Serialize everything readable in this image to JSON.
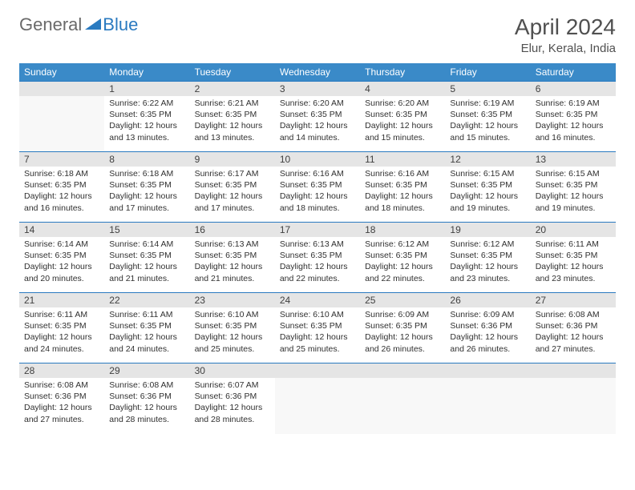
{
  "logo": {
    "part1": "General",
    "part2": "Blue"
  },
  "title": "April 2024",
  "location": "Elur, Kerala, India",
  "colors": {
    "header_bg": "#3a8ac8",
    "header_text": "#ffffff",
    "daynum_bg": "#e5e5e5",
    "border": "#2a7ac0",
    "logo_gray": "#6a6a6a",
    "logo_blue": "#2a7ac0",
    "text": "#303030",
    "title_text": "#505050"
  },
  "day_headers": [
    "Sunday",
    "Monday",
    "Tuesday",
    "Wednesday",
    "Thursday",
    "Friday",
    "Saturday"
  ],
  "weeks": [
    [
      null,
      {
        "n": "1",
        "sr": "Sunrise: 6:22 AM",
        "ss": "Sunset: 6:35 PM",
        "dl": "Daylight: 12 hours and 13 minutes."
      },
      {
        "n": "2",
        "sr": "Sunrise: 6:21 AM",
        "ss": "Sunset: 6:35 PM",
        "dl": "Daylight: 12 hours and 13 minutes."
      },
      {
        "n": "3",
        "sr": "Sunrise: 6:20 AM",
        "ss": "Sunset: 6:35 PM",
        "dl": "Daylight: 12 hours and 14 minutes."
      },
      {
        "n": "4",
        "sr": "Sunrise: 6:20 AM",
        "ss": "Sunset: 6:35 PM",
        "dl": "Daylight: 12 hours and 15 minutes."
      },
      {
        "n": "5",
        "sr": "Sunrise: 6:19 AM",
        "ss": "Sunset: 6:35 PM",
        "dl": "Daylight: 12 hours and 15 minutes."
      },
      {
        "n": "6",
        "sr": "Sunrise: 6:19 AM",
        "ss": "Sunset: 6:35 PM",
        "dl": "Daylight: 12 hours and 16 minutes."
      }
    ],
    [
      {
        "n": "7",
        "sr": "Sunrise: 6:18 AM",
        "ss": "Sunset: 6:35 PM",
        "dl": "Daylight: 12 hours and 16 minutes."
      },
      {
        "n": "8",
        "sr": "Sunrise: 6:18 AM",
        "ss": "Sunset: 6:35 PM",
        "dl": "Daylight: 12 hours and 17 minutes."
      },
      {
        "n": "9",
        "sr": "Sunrise: 6:17 AM",
        "ss": "Sunset: 6:35 PM",
        "dl": "Daylight: 12 hours and 17 minutes."
      },
      {
        "n": "10",
        "sr": "Sunrise: 6:16 AM",
        "ss": "Sunset: 6:35 PM",
        "dl": "Daylight: 12 hours and 18 minutes."
      },
      {
        "n": "11",
        "sr": "Sunrise: 6:16 AM",
        "ss": "Sunset: 6:35 PM",
        "dl": "Daylight: 12 hours and 18 minutes."
      },
      {
        "n": "12",
        "sr": "Sunrise: 6:15 AM",
        "ss": "Sunset: 6:35 PM",
        "dl": "Daylight: 12 hours and 19 minutes."
      },
      {
        "n": "13",
        "sr": "Sunrise: 6:15 AM",
        "ss": "Sunset: 6:35 PM",
        "dl": "Daylight: 12 hours and 19 minutes."
      }
    ],
    [
      {
        "n": "14",
        "sr": "Sunrise: 6:14 AM",
        "ss": "Sunset: 6:35 PM",
        "dl": "Daylight: 12 hours and 20 minutes."
      },
      {
        "n": "15",
        "sr": "Sunrise: 6:14 AM",
        "ss": "Sunset: 6:35 PM",
        "dl": "Daylight: 12 hours and 21 minutes."
      },
      {
        "n": "16",
        "sr": "Sunrise: 6:13 AM",
        "ss": "Sunset: 6:35 PM",
        "dl": "Daylight: 12 hours and 21 minutes."
      },
      {
        "n": "17",
        "sr": "Sunrise: 6:13 AM",
        "ss": "Sunset: 6:35 PM",
        "dl": "Daylight: 12 hours and 22 minutes."
      },
      {
        "n": "18",
        "sr": "Sunrise: 6:12 AM",
        "ss": "Sunset: 6:35 PM",
        "dl": "Daylight: 12 hours and 22 minutes."
      },
      {
        "n": "19",
        "sr": "Sunrise: 6:12 AM",
        "ss": "Sunset: 6:35 PM",
        "dl": "Daylight: 12 hours and 23 minutes."
      },
      {
        "n": "20",
        "sr": "Sunrise: 6:11 AM",
        "ss": "Sunset: 6:35 PM",
        "dl": "Daylight: 12 hours and 23 minutes."
      }
    ],
    [
      {
        "n": "21",
        "sr": "Sunrise: 6:11 AM",
        "ss": "Sunset: 6:35 PM",
        "dl": "Daylight: 12 hours and 24 minutes."
      },
      {
        "n": "22",
        "sr": "Sunrise: 6:11 AM",
        "ss": "Sunset: 6:35 PM",
        "dl": "Daylight: 12 hours and 24 minutes."
      },
      {
        "n": "23",
        "sr": "Sunrise: 6:10 AM",
        "ss": "Sunset: 6:35 PM",
        "dl": "Daylight: 12 hours and 25 minutes."
      },
      {
        "n": "24",
        "sr": "Sunrise: 6:10 AM",
        "ss": "Sunset: 6:35 PM",
        "dl": "Daylight: 12 hours and 25 minutes."
      },
      {
        "n": "25",
        "sr": "Sunrise: 6:09 AM",
        "ss": "Sunset: 6:35 PM",
        "dl": "Daylight: 12 hours and 26 minutes."
      },
      {
        "n": "26",
        "sr": "Sunrise: 6:09 AM",
        "ss": "Sunset: 6:36 PM",
        "dl": "Daylight: 12 hours and 26 minutes."
      },
      {
        "n": "27",
        "sr": "Sunrise: 6:08 AM",
        "ss": "Sunset: 6:36 PM",
        "dl": "Daylight: 12 hours and 27 minutes."
      }
    ],
    [
      {
        "n": "28",
        "sr": "Sunrise: 6:08 AM",
        "ss": "Sunset: 6:36 PM",
        "dl": "Daylight: 12 hours and 27 minutes."
      },
      {
        "n": "29",
        "sr": "Sunrise: 6:08 AM",
        "ss": "Sunset: 6:36 PM",
        "dl": "Daylight: 12 hours and 28 minutes."
      },
      {
        "n": "30",
        "sr": "Sunrise: 6:07 AM",
        "ss": "Sunset: 6:36 PM",
        "dl": "Daylight: 12 hours and 28 minutes."
      },
      null,
      null,
      null,
      null
    ]
  ]
}
